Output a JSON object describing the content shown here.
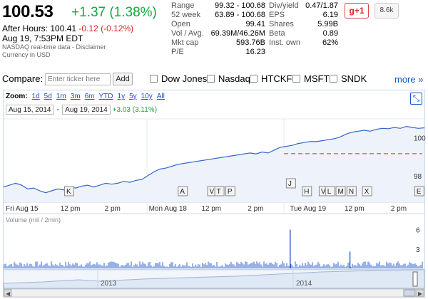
{
  "quote": {
    "price": "100.53",
    "change": "+1.37 (1.38%)",
    "after_hours_label": "After Hours:",
    "after_hours_price": "100.41",
    "after_hours_change": "-0.12 (-0.12%)",
    "datetime": "Aug 19, 7:53PM EDT",
    "source": "NASDAQ real-time data - Disclaimer",
    "currency": "Currency in USD"
  },
  "stats_left": [
    {
      "label": "Range",
      "value": "99.32 - 100.68"
    },
    {
      "label": "52 week",
      "value": "63.89 - 100.68"
    },
    {
      "label": "Open",
      "value": "99.41"
    },
    {
      "label": "Vol / Avg.",
      "value": "69.39M/46.26M"
    },
    {
      "label": "Mkt cap",
      "value": "593.76B"
    },
    {
      "label": "P/E",
      "value": "16.23"
    }
  ],
  "stats_right": [
    {
      "label": "Div/yield",
      "value": "0.47/1.87"
    },
    {
      "label": "EPS",
      "value": "6.19"
    },
    {
      "label": "Shares",
      "value": "5.99B"
    },
    {
      "label": "Beta",
      "value": "0.89"
    },
    {
      "label": "Inst. own",
      "value": "62%"
    }
  ],
  "social": {
    "gplus_label": "g+1",
    "count": "8.6k"
  },
  "compare": {
    "label": "Compare:",
    "placeholder": "Enter ticker here",
    "add_label": "Add",
    "tickers": [
      "Dow Jones",
      "Nasdaq",
      "HTCKF",
      "MSFT",
      "SNDK"
    ],
    "more_label": "more »"
  },
  "zoom": {
    "label": "Zoom:",
    "options": [
      "1d",
      "5d",
      "1m",
      "3m",
      "6m",
      "YTD",
      "1y",
      "5y",
      "10y",
      "All"
    ]
  },
  "date_range": {
    "start": "Aug 15, 2014",
    "end": "Aug 19, 2014",
    "change": "+3.03 (3.11%)",
    "sep": "-"
  },
  "chart_data": {
    "type": "line",
    "title": "",
    "y_ticks": [
      98,
      100
    ],
    "ylim": [
      96.6,
      101.0
    ],
    "x_tick_labels": [
      "Fri Aug 15",
      "12 pm",
      "2 pm",
      "Mon Aug 18",
      "12 pm",
      "2 pm",
      "Tue Aug 19",
      "12 pm",
      "2 pm"
    ],
    "previous_close": 99.16,
    "series": [
      {
        "values": [
          97.4,
          97.5,
          97.6,
          97.5,
          97.3,
          97.35,
          97.2,
          97.1,
          97.2,
          97.3,
          97.25,
          97.4,
          97.35,
          97.45,
          97.5,
          97.4,
          97.5,
          97.6,
          97.55,
          97.6,
          97.7,
          97.65,
          97.75,
          97.8,
          98.0,
          98.2,
          98.35,
          98.4,
          98.5,
          98.6,
          98.65,
          98.7,
          98.75,
          98.8,
          98.85,
          98.9,
          98.95,
          99.0,
          99.05,
          99.1,
          99.15,
          99.2,
          99.15,
          99.25,
          99.2,
          99.35,
          99.5,
          99.55,
          99.6,
          99.7,
          99.75,
          99.8,
          99.8,
          99.85,
          99.9,
          99.95,
          100.05,
          100.2,
          100.3,
          100.35,
          100.4,
          100.35,
          100.45,
          100.5,
          100.48,
          100.55,
          100.5,
          100.6,
          100.55,
          100.5,
          100.53
        ]
      }
    ],
    "volume": {
      "label": "Volume (mil / 2min)",
      "y_ticks": [
        3,
        6
      ],
      "spikes": [
        {
          "position": 0.681,
          "value": 6.0
        },
        {
          "position": 0.823,
          "value": 2.6
        }
      ]
    },
    "navigator_labels": [
      "2013",
      "2014"
    ],
    "event_markers": [
      "K",
      "A",
      "V",
      "T",
      "P",
      "J",
      "H",
      "V",
      "L",
      "M",
      "N",
      "X",
      "E"
    ]
  }
}
